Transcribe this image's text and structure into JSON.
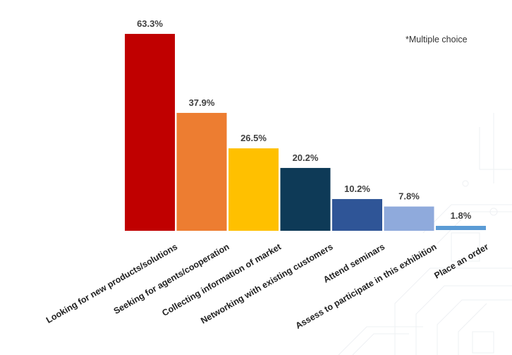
{
  "chart_data": {
    "type": "bar",
    "title": "",
    "xlabel": "",
    "ylabel": "",
    "note": "*Multiple choice",
    "ylim": [
      0,
      70
    ],
    "grid": false,
    "legend": "none",
    "value_suffix": "%",
    "categories": [
      "Looking for new products/solutions",
      "Seeking for agents/cooperation",
      "Collecting information of market",
      "Networking with existing customers",
      "Attend seminars",
      "Assess to participate in this exhibition",
      "Place an order"
    ],
    "values": [
      63.3,
      37.9,
      26.5,
      20.2,
      10.2,
      7.8,
      1.8
    ],
    "data_labels": [
      "63.3%",
      "37.9%",
      "26.5%",
      "20.2%",
      "10.2%",
      "7.8%",
      "1.8%"
    ],
    "colors": [
      "#C00000",
      "#ED7D31",
      "#FFC000",
      "#0E3A57",
      "#2F5597",
      "#8FAADC",
      "#5B9BD5"
    ]
  }
}
